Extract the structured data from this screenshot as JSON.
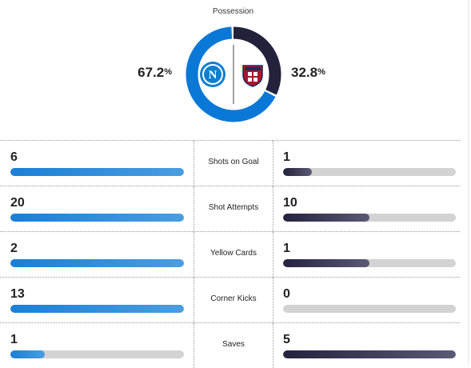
{
  "possession": {
    "title": "Possession",
    "home": {
      "value": "67.2",
      "unit": "%",
      "fraction": 0.672,
      "color": "#0a78d6",
      "logo": "napoli-crest-icon"
    },
    "away": {
      "value": "32.8",
      "unit": "%",
      "fraction": 0.328,
      "color": "#22223d",
      "logo": "cagliari-crest-icon"
    }
  },
  "stats": [
    {
      "label": "Shots on Goal",
      "home": "6",
      "away": "1",
      "home_fraction": 1.0,
      "away_fraction": 0.167
    },
    {
      "label": "Shot Attempts",
      "home": "20",
      "away": "10",
      "home_fraction": 1.0,
      "away_fraction": 0.5
    },
    {
      "label": "Yellow Cards",
      "home": "2",
      "away": "1",
      "home_fraction": 1.0,
      "away_fraction": 0.5
    },
    {
      "label": "Corner Kicks",
      "home": "13",
      "away": "0",
      "home_fraction": 1.0,
      "away_fraction": 0.0
    },
    {
      "label": "Saves",
      "home": "1",
      "away": "5",
      "home_fraction": 0.2,
      "away_fraction": 1.0
    }
  ]
}
